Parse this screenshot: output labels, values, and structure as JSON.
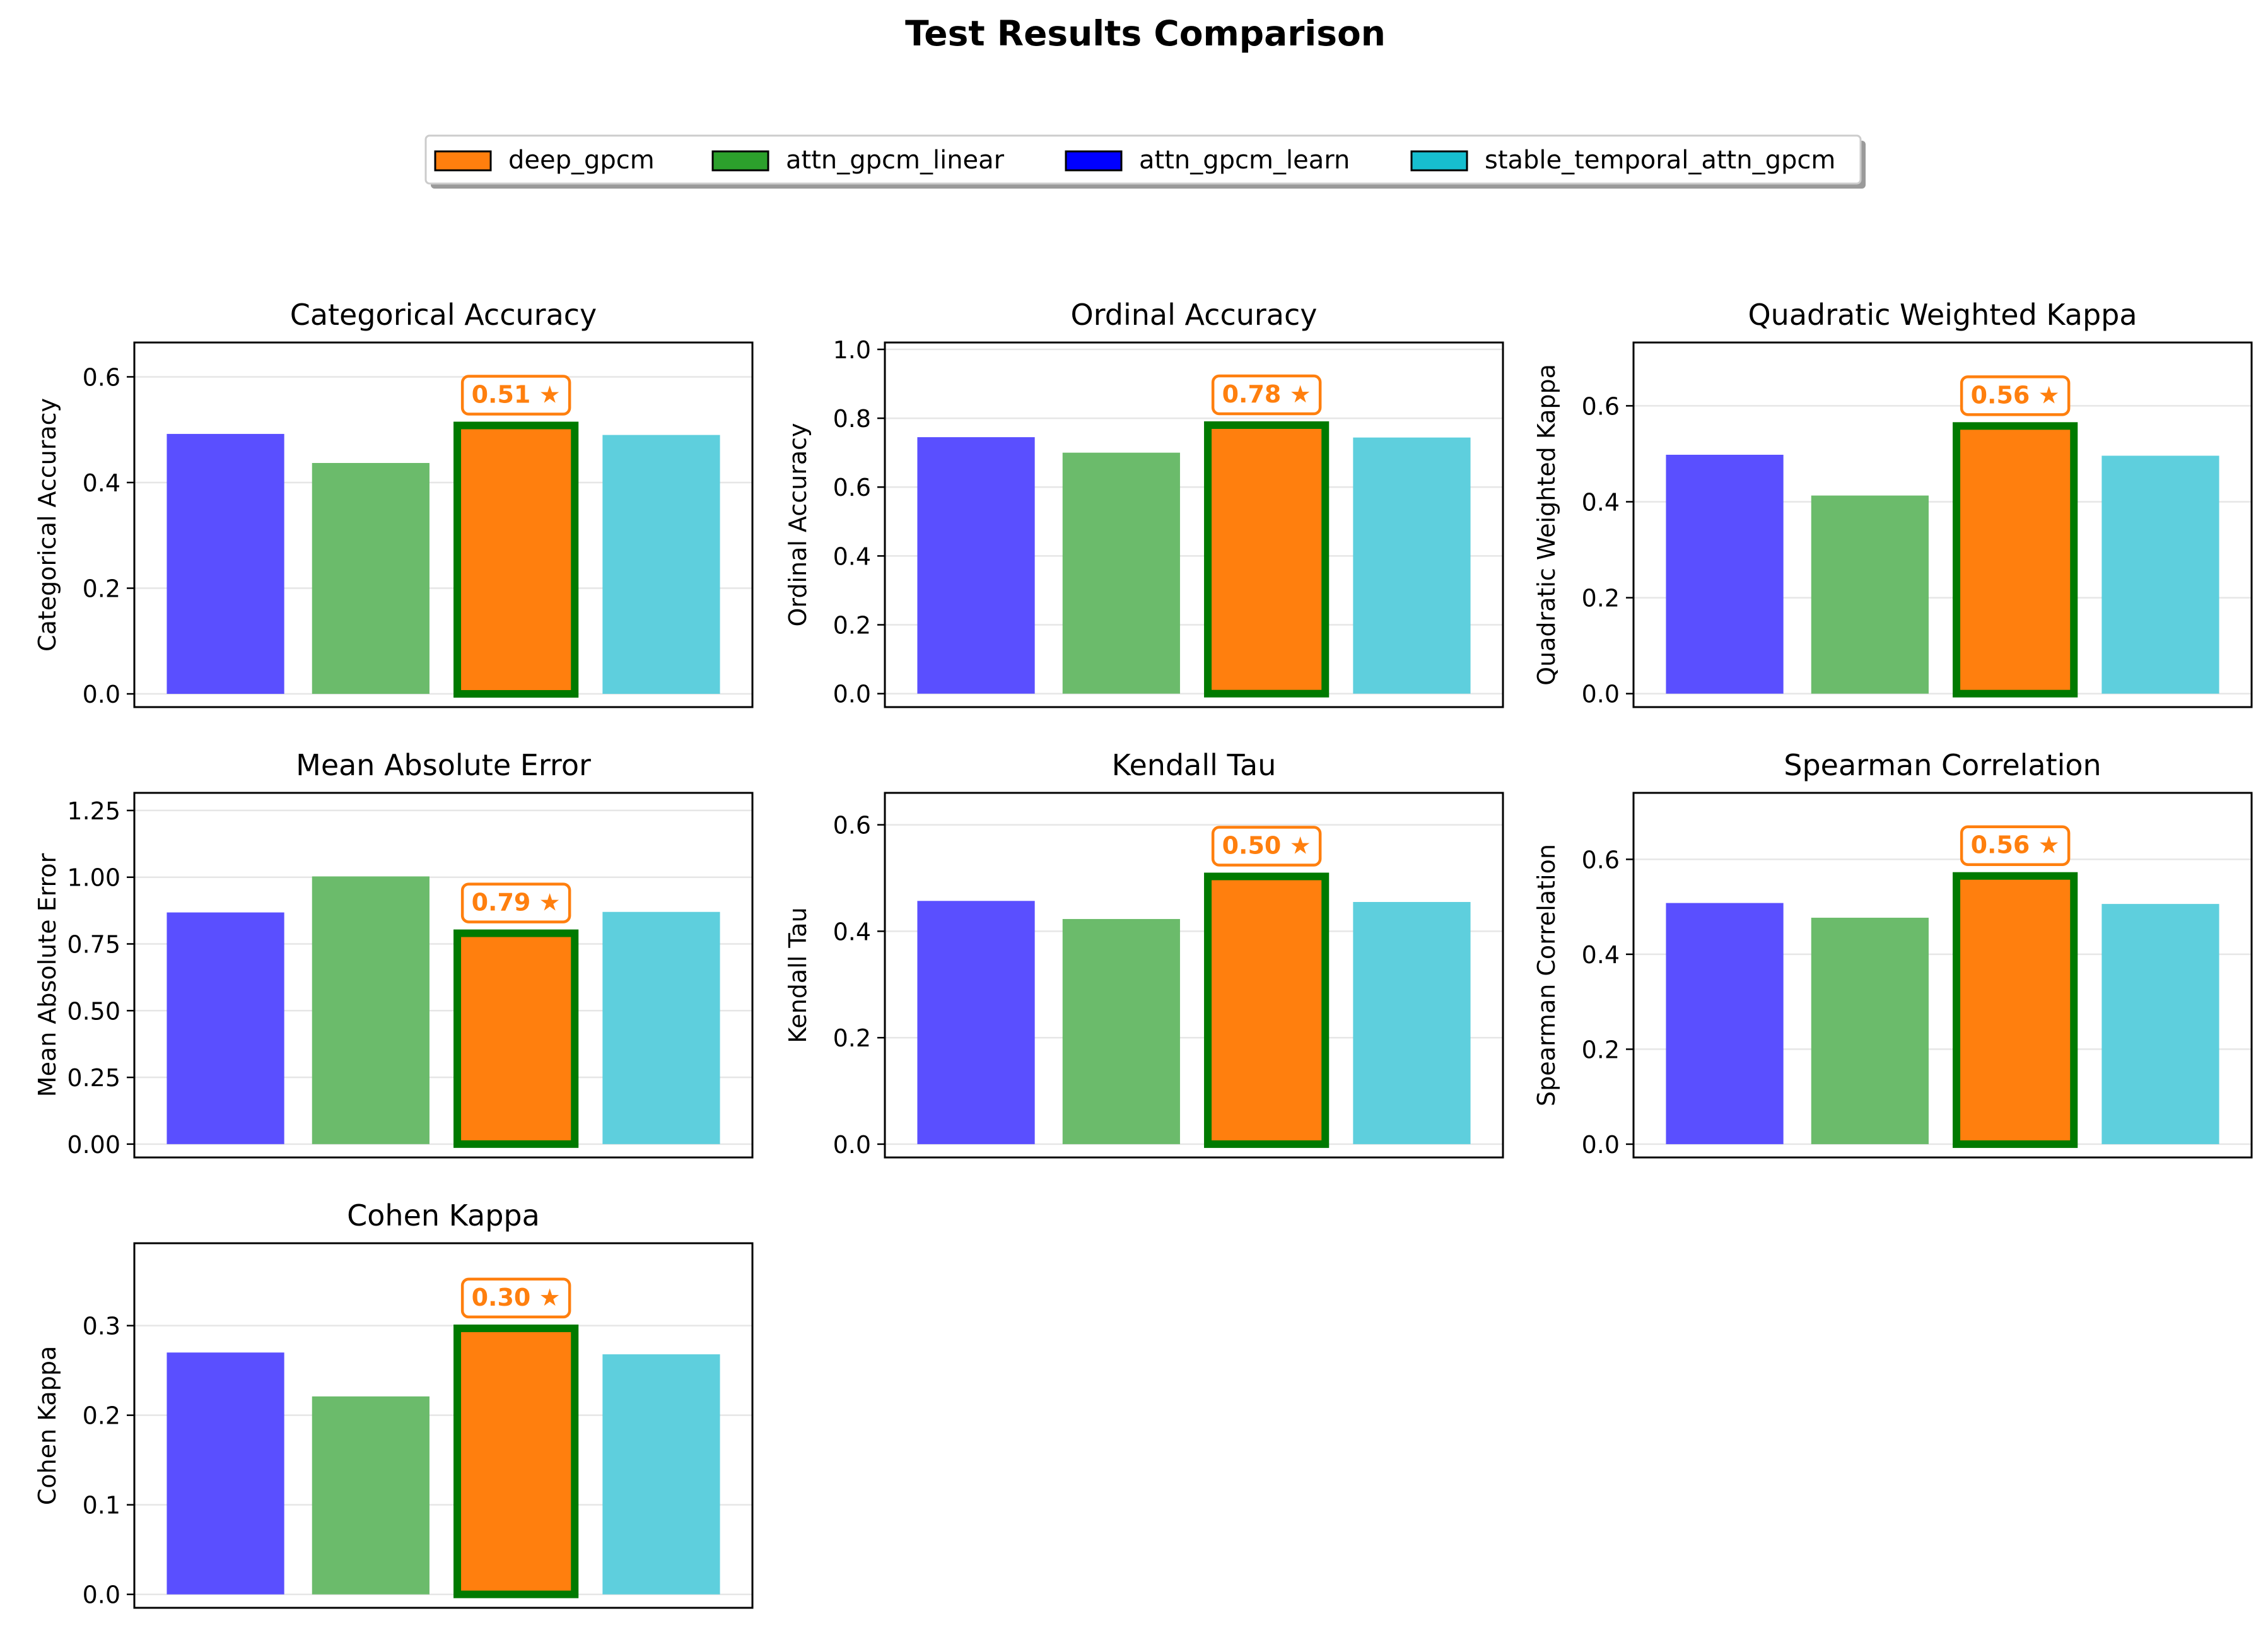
{
  "figure": {
    "title": "Test Results Comparison"
  },
  "legend": {
    "placement": "top-center",
    "entries": [
      {
        "name": "deep_gpcm",
        "color": "#ff7f0e"
      },
      {
        "name": "attn_gpcm_linear",
        "color": "#2ca02c"
      },
      {
        "name": "attn_gpcm_learn",
        "color": "#0000ff"
      },
      {
        "name": "stable_temporal_attn_gpcm",
        "color": "#17becf"
      }
    ]
  },
  "colors": {
    "attn_gpcm_learn": "#5a4fff",
    "attn_gpcm_linear": "#6bbb6b",
    "deep_gpcm": "#ff7f0e",
    "stable_temporal_attn_gpcm": "#5ecfdd",
    "best_edge": "#007a00",
    "annotation": "#ff7f0e",
    "grid": "#e6e6e6"
  },
  "chart_data": [
    {
      "type": "bar",
      "title": "Categorical Accuracy",
      "ylabel": "Categorical Accuracy",
      "categories": [
        "attn_gpcm_learn",
        "attn_gpcm_linear",
        "deep_gpcm",
        "stable_temporal_attn_gpcm"
      ],
      "values": [
        0.492,
        0.437,
        0.508,
        0.49
      ],
      "ylim": [
        -0.025,
        0.665
      ],
      "yticks": [
        "0.0",
        "0.2",
        "0.4",
        "0.6"
      ],
      "ytick_values": [
        0.0,
        0.2,
        0.4,
        0.6
      ],
      "best_index": 2,
      "best_label": "0.51 ★",
      "grid": true
    },
    {
      "type": "bar",
      "title": "Ordinal Accuracy",
      "ylabel": "Ordinal Accuracy",
      "categories": [
        "attn_gpcm_learn",
        "attn_gpcm_linear",
        "deep_gpcm",
        "stable_temporal_attn_gpcm"
      ],
      "values": [
        0.745,
        0.7,
        0.78,
        0.744
      ],
      "ylim": [
        -0.039,
        1.02
      ],
      "yticks": [
        "0.0",
        "0.2",
        "0.4",
        "0.6",
        "0.8",
        "1.0"
      ],
      "ytick_values": [
        0.0,
        0.2,
        0.4,
        0.6,
        0.8,
        1.0
      ],
      "best_index": 2,
      "best_label": "0.78 ★",
      "grid": true
    },
    {
      "type": "bar",
      "title": "Quadratic Weighted Kappa",
      "ylabel": "Quadratic Weighted Kappa",
      "categories": [
        "attn_gpcm_learn",
        "attn_gpcm_linear",
        "deep_gpcm",
        "stable_temporal_attn_gpcm"
      ],
      "values": [
        0.498,
        0.413,
        0.558,
        0.496
      ],
      "ylim": [
        -0.028,
        0.732
      ],
      "yticks": [
        "0.0",
        "0.2",
        "0.4",
        "0.6"
      ],
      "ytick_values": [
        0.0,
        0.2,
        0.4,
        0.6
      ],
      "best_index": 2,
      "best_label": "0.56 ★",
      "grid": true
    },
    {
      "type": "bar",
      "title": "Mean Absolute Error",
      "ylabel": "Mean Absolute Error",
      "categories": [
        "attn_gpcm_learn",
        "attn_gpcm_linear",
        "deep_gpcm",
        "stable_temporal_attn_gpcm"
      ],
      "values": [
        0.868,
        1.003,
        0.79,
        0.87
      ],
      "ylim": [
        -0.05,
        1.316
      ],
      "yticks": [
        "0.00",
        "0.25",
        "0.50",
        "0.75",
        "1.00",
        "1.25"
      ],
      "ytick_values": [
        0.0,
        0.25,
        0.5,
        0.75,
        1.0,
        1.25
      ],
      "best_index": 2,
      "best_label": "0.79 ★",
      "grid": true
    },
    {
      "type": "bar",
      "title": "Kendall Tau",
      "ylabel": "Kendall Tau",
      "categories": [
        "attn_gpcm_learn",
        "attn_gpcm_linear",
        "deep_gpcm",
        "stable_temporal_attn_gpcm"
      ],
      "values": [
        0.457,
        0.423,
        0.503,
        0.455
      ],
      "ylim": [
        -0.025,
        0.66
      ],
      "yticks": [
        "0.0",
        "0.2",
        "0.4",
        "0.6"
      ],
      "ytick_values": [
        0.0,
        0.2,
        0.4,
        0.6
      ],
      "best_index": 2,
      "best_label": "0.50 ★",
      "grid": true
    },
    {
      "type": "bar",
      "title": "Spearman Correlation",
      "ylabel": "Spearman Correlation",
      "categories": [
        "attn_gpcm_learn",
        "attn_gpcm_linear",
        "deep_gpcm",
        "stable_temporal_attn_gpcm"
      ],
      "values": [
        0.508,
        0.477,
        0.565,
        0.506
      ],
      "ylim": [
        -0.028,
        0.74
      ],
      "yticks": [
        "0.0",
        "0.2",
        "0.4",
        "0.6"
      ],
      "ytick_values": [
        0.0,
        0.2,
        0.4,
        0.6
      ],
      "best_index": 2,
      "best_label": "0.56 ★",
      "grid": true
    },
    {
      "type": "bar",
      "title": "Cohen Kappa",
      "ylabel": "Cohen Kappa",
      "categories": [
        "attn_gpcm_learn",
        "attn_gpcm_linear",
        "deep_gpcm",
        "stable_temporal_attn_gpcm"
      ],
      "values": [
        0.27,
        0.221,
        0.297,
        0.268
      ],
      "ylim": [
        -0.015,
        0.392
      ],
      "yticks": [
        "0.0",
        "0.1",
        "0.2",
        "0.3"
      ],
      "ytick_values": [
        0.0,
        0.1,
        0.2,
        0.3
      ],
      "best_index": 2,
      "best_label": "0.30 ★",
      "grid": true
    }
  ]
}
